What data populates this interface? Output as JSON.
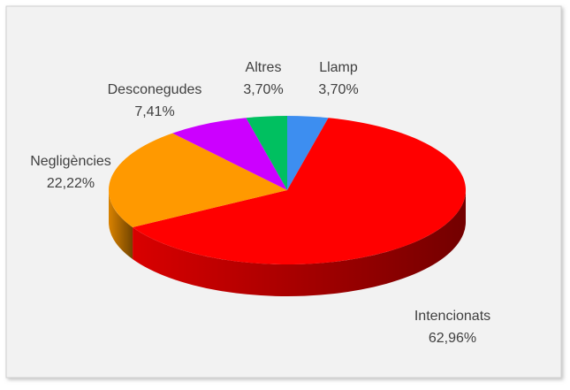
{
  "chart_data": {
    "type": "pie",
    "categories": [
      "Llamp",
      "Intencionats",
      "Negligències",
      "Desconegudes",
      "Altres"
    ],
    "values": [
      3.7,
      62.96,
      22.22,
      7.41,
      3.7
    ],
    "value_labels": [
      "3,70%",
      "62,96%",
      "22,22%",
      "7,41%",
      "3,70%"
    ],
    "colors": [
      "#3d8ef0",
      "#ff0000",
      "#ff9900",
      "#cc00ff",
      "#00c060"
    ]
  }
}
